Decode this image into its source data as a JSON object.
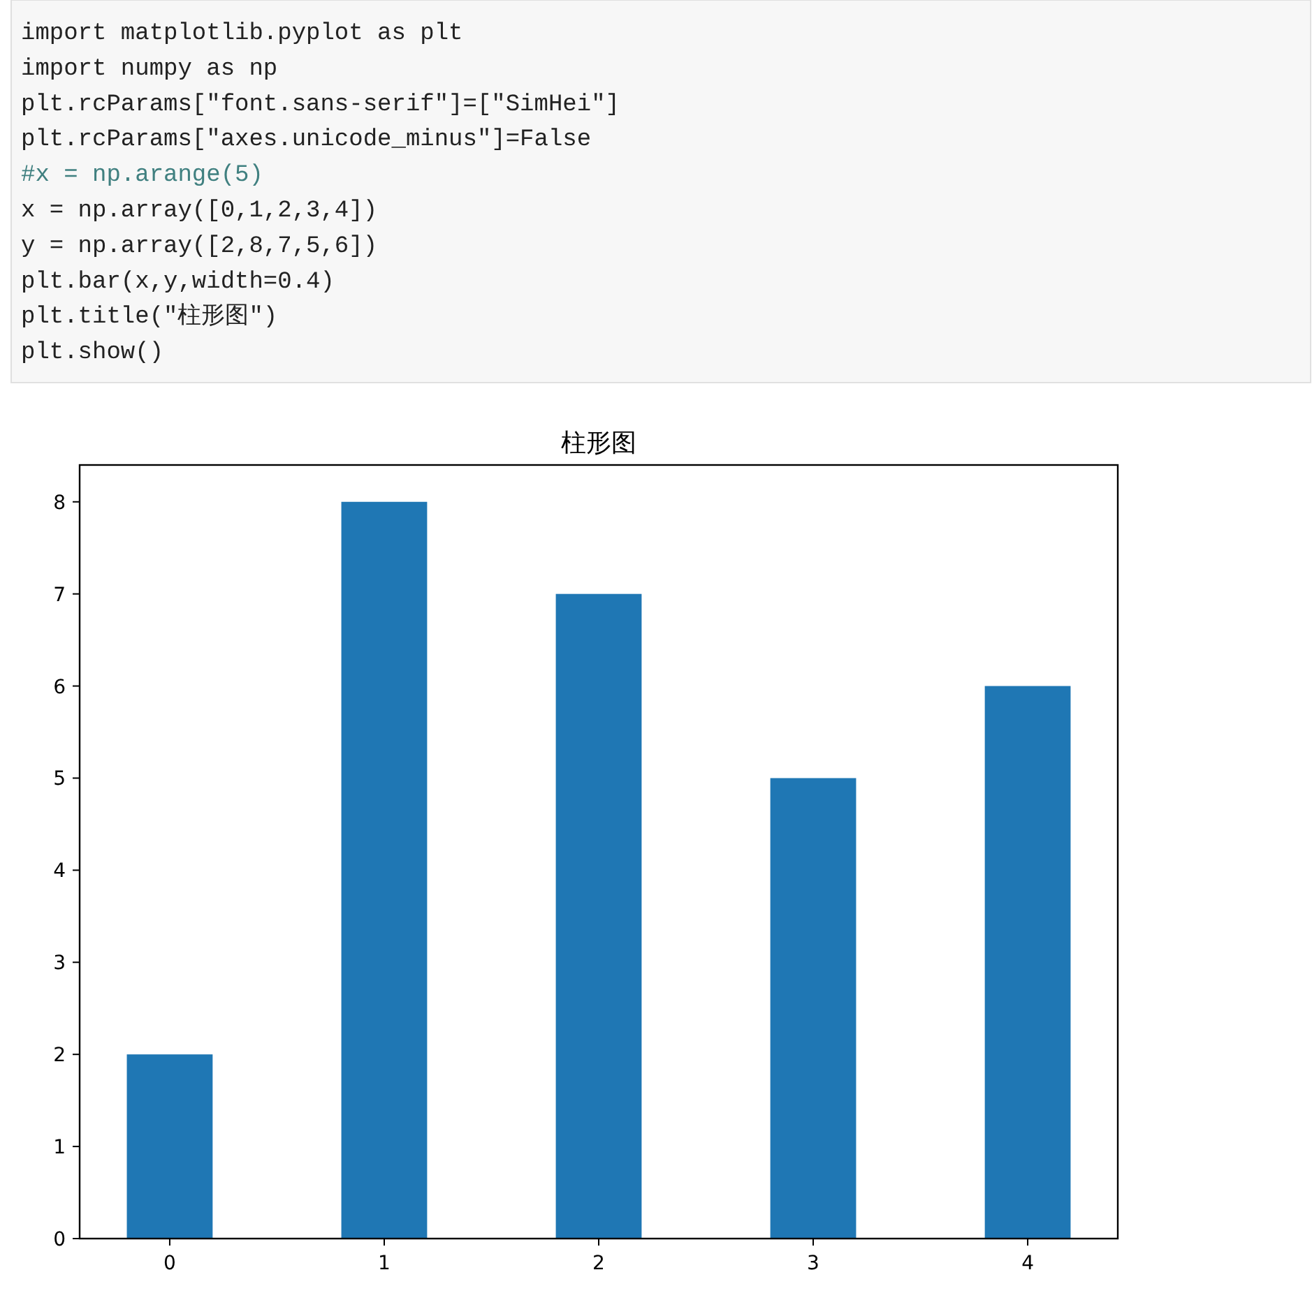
{
  "chart_data": [
    {
      "type": "other",
      "annotations": [
        "import matplotlib.pyplot as plt",
        "import numpy as np",
        "plt.rcParams[\"font.sans-serif\"]=[\"SimHei\"]",
        "plt.rcParams[\"axes.unicode_minus\"]=False",
        "#x = np.arange(5)",
        "x = np.array([0,1,2,3,4])",
        "y = np.array([2,8,7,5,6])",
        "plt.bar(x,y,width=0.4)",
        "plt.title(\"柱形图\")",
        "plt.show()"
      ]
    },
    {
      "type": "bar",
      "title": "柱形图",
      "x": [
        0,
        1,
        2,
        3,
        4
      ],
      "values": [
        2,
        8,
        7,
        5,
        6
      ],
      "color": "#1f77b4",
      "xlim": [
        -0.42,
        4.42
      ],
      "xticks": [
        0,
        1,
        2,
        3,
        4
      ],
      "ylim": [
        0,
        8.4
      ],
      "yticks": [
        0,
        1,
        2,
        3,
        4,
        5,
        6,
        7,
        8
      ],
      "grid": false
    }
  ]
}
